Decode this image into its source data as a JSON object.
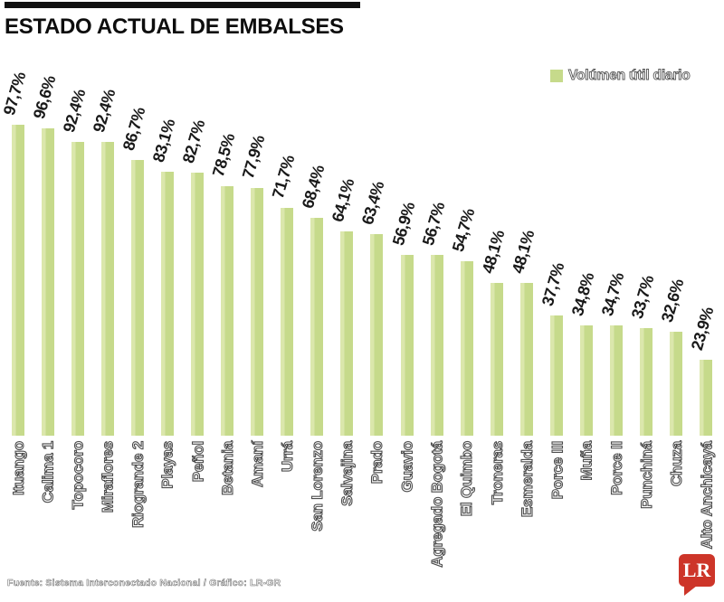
{
  "header": {
    "title": "ESTADO ACTUAL DE EMBALSES"
  },
  "legend": {
    "label": "Volúmen útil diario",
    "swatch_color": "#c6da8b"
  },
  "chart_data": {
    "type": "bar",
    "title": "ESTADO ACTUAL DE EMBALSES",
    "series_name": "Volúmen útil diario",
    "unit": "%",
    "categories": [
      "Ituango",
      "Calima 1",
      "Topocoro",
      "Miraflores",
      "Riogrande 2",
      "Playas",
      "Peñol",
      "Betania",
      "Amaní",
      "Urrá",
      "San Lorenzo",
      "Salvajina",
      "Prado",
      "Guavio",
      "Agregado Bogotá",
      "El Quimbo",
      "Troneras",
      "Esmeralda",
      "Porce III",
      "Muña",
      "Porce II",
      "Punchiná",
      "Chuza",
      "Alto Anchicayá"
    ],
    "values": [
      97.7,
      96.6,
      92.4,
      92.4,
      86.7,
      83.1,
      82.7,
      78.5,
      77.9,
      71.7,
      68.4,
      64.1,
      63.4,
      56.9,
      56.7,
      54.7,
      48.1,
      48.1,
      37.7,
      34.8,
      34.7,
      33.7,
      32.6,
      23.9
    ],
    "value_labels": [
      "97,7%",
      "96,6%",
      "92,4%",
      "92,4%",
      "86,7%",
      "83,1%",
      "82,7%",
      "78,5%",
      "77,9%",
      "71,7%",
      "68,4%",
      "64,1%",
      "63,4%",
      "56,9%",
      "56,7%",
      "54,7%",
      "48,1%",
      "48,1%",
      "37,7%",
      "34,8%",
      "34,7%",
      "33,7%",
      "32,6%",
      "23,9%"
    ],
    "bar_color": "#c6da8b",
    "ylim": [
      0,
      100
    ],
    "grid": false,
    "axis_lines": false,
    "legend_position": "top-right",
    "category_label_rotation": -90,
    "value_label_rotation": -74
  },
  "footer": {
    "source": "Fuente: Sistema Interconectado Nacional / Gráfico: LR-GR",
    "logo_text": "LR",
    "logo_color": "#cd3529"
  }
}
